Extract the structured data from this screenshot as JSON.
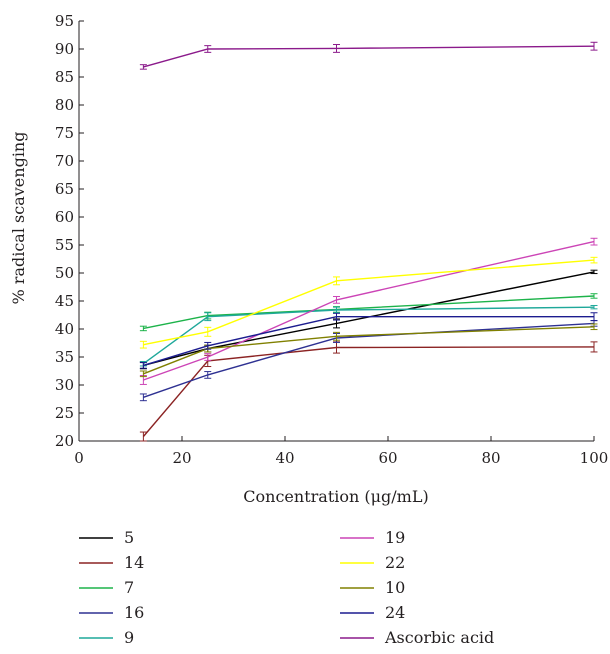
{
  "chart_data": {
    "type": "line",
    "xlabel": "Concentration (μg/mL)",
    "ylabel": "% radical scavenging",
    "xlim": [
      0,
      100
    ],
    "ylim": [
      20,
      95
    ],
    "x_ticks": [
      0,
      20,
      40,
      60,
      80,
      100
    ],
    "y_ticks": [
      20,
      25,
      30,
      35,
      40,
      45,
      50,
      55,
      60,
      65,
      70,
      75,
      80,
      85,
      90,
      95
    ],
    "grid": false,
    "legend_position": "bottom",
    "x": [
      12.5,
      25,
      50,
      100
    ],
    "series": [
      {
        "name": "5",
        "color": "#000000",
        "values": [
          33.5,
          36.5,
          41.0,
          50.2
        ],
        "errors": [
          0.6,
          0.6,
          0.8,
          0.3
        ]
      },
      {
        "name": "14",
        "color": "#8b2323",
        "values": [
          20.8,
          34.3,
          36.7,
          36.8
        ],
        "errors": [
          0.8,
          1.0,
          1.0,
          0.9
        ]
      },
      {
        "name": "7",
        "color": "#1db34a",
        "values": [
          40.1,
          42.4,
          43.5,
          45.9
        ],
        "errors": [
          0.4,
          0.6,
          0.5,
          0.4
        ]
      },
      {
        "name": "16",
        "color": "#2e3192",
        "values": [
          27.8,
          31.8,
          38.4,
          41.0
        ],
        "errors": [
          0.6,
          0.6,
          0.8,
          0.5
        ]
      },
      {
        "name": "9",
        "color": "#1fa89a",
        "values": [
          33.8,
          42.2,
          43.4,
          43.9
        ],
        "errors": [
          0.4,
          0.7,
          0.5,
          0.3
        ]
      },
      {
        "name": "19",
        "color": "#cc44b6",
        "values": [
          30.9,
          35.0,
          45.2,
          55.6
        ],
        "errors": [
          0.8,
          0.6,
          0.6,
          0.6
        ]
      },
      {
        "name": "22",
        "color": "#ffff00",
        "values": [
          37.2,
          39.5,
          48.6,
          52.3
        ],
        "errors": [
          0.6,
          0.8,
          0.7,
          0.5
        ]
      },
      {
        "name": "10",
        "color": "#808000",
        "values": [
          32.0,
          36.5,
          38.7,
          40.4
        ],
        "errors": [
          0.5,
          0.6,
          0.7,
          0.5
        ]
      },
      {
        "name": "24",
        "color": "#1c1c8f",
        "values": [
          33.5,
          37.0,
          42.2,
          42.2
        ],
        "errors": [
          0.5,
          0.6,
          0.6,
          0.7
        ]
      },
      {
        "name": "Ascorbic acid",
        "color": "#8b1a8b",
        "values": [
          86.8,
          90.0,
          90.1,
          90.5
        ],
        "errors": [
          0.4,
          0.6,
          0.7,
          0.7
        ]
      }
    ]
  }
}
